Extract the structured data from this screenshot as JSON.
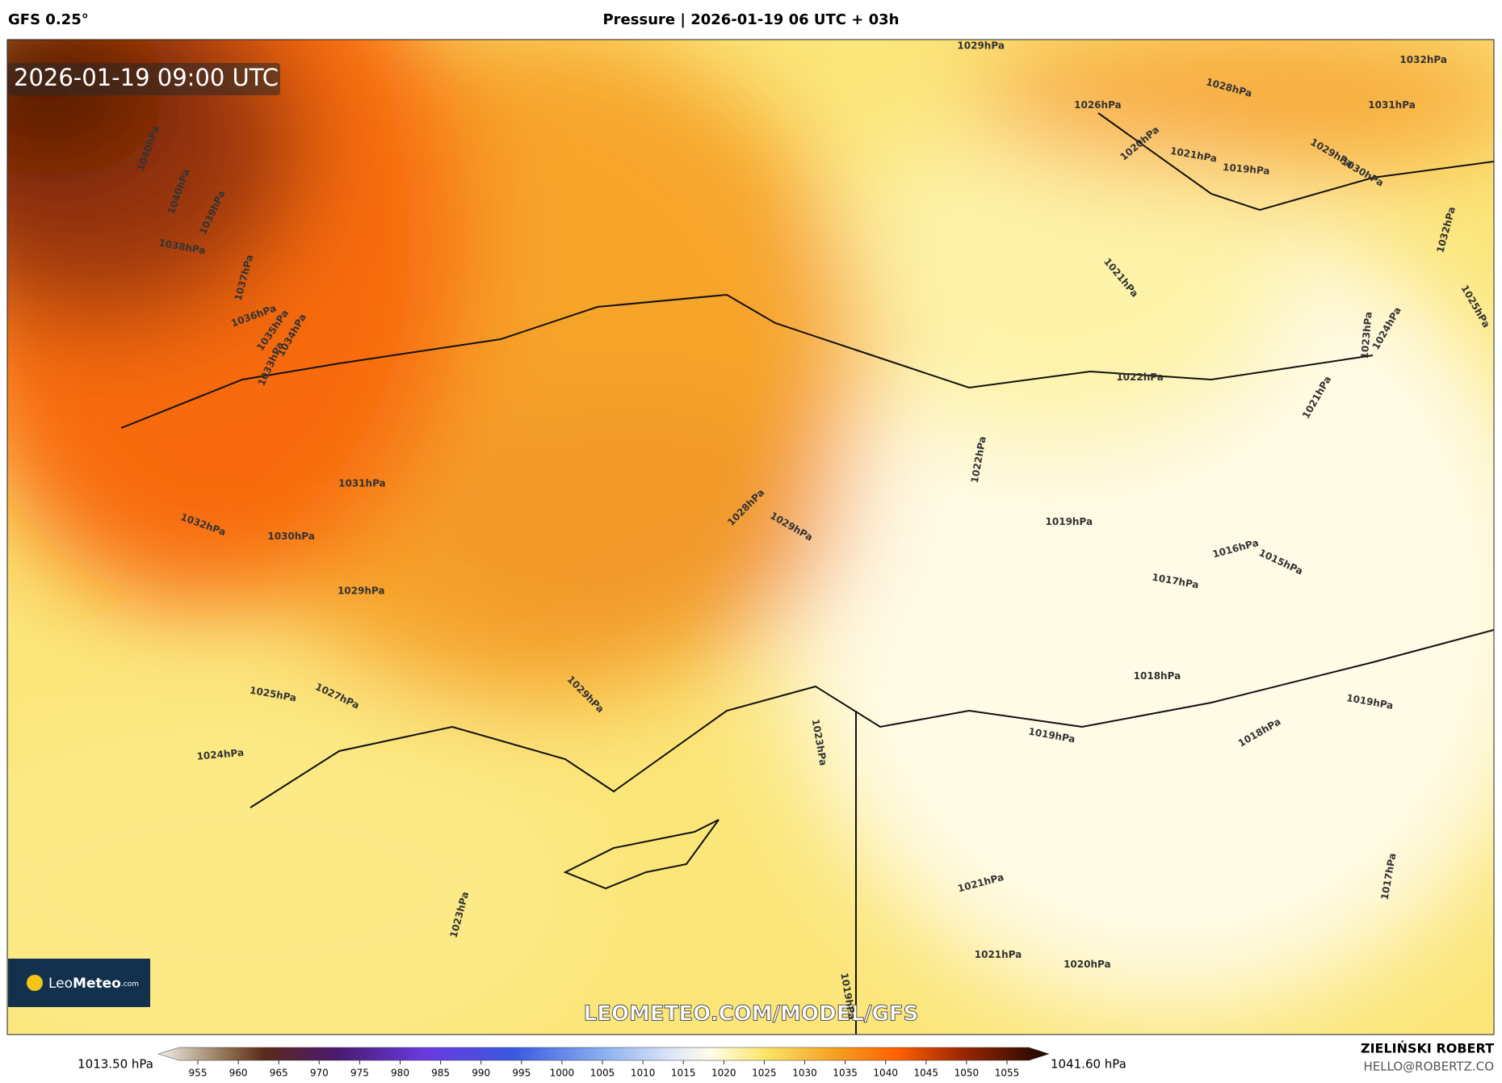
{
  "header": {
    "model": "GFS 0.25°",
    "title": "Pressure | 2026-01-19 06 UTC + 03h"
  },
  "map": {
    "timestamp": "2026-01-19 09:00 UTC",
    "watermark": "LEOMETEO.COM/MODEL/GFS",
    "logo": {
      "name": "Leo",
      "bold": "Meteo",
      "suffix": ".com"
    },
    "contour_labels": [
      "1029hPa",
      "1032hPa",
      "1028hPa",
      "1026hPa",
      "1031hPa",
      "1020hPa",
      "1021hPa",
      "1019hPa",
      "1029hPa",
      "1030hPa",
      "1021hPa",
      "1022hPa",
      "1032hPa",
      "1025hPa",
      "1023hPa",
      "1024hPa",
      "1021hPa",
      "1022hPa",
      "1031hPa",
      "1032hPa",
      "1030hPa",
      "1028hPa",
      "1029hPa",
      "1019hPa",
      "1016hPa",
      "1015hPa",
      "1017hPa",
      "1029hPa",
      "1018hPa",
      "1025hPa",
      "1027hPa",
      "1029hPa",
      "1019hPa",
      "1024hPa",
      "1023hPa",
      "1019hPa",
      "1018hPa",
      "1021hPa",
      "1023hPa",
      "1017hPa",
      "1021hPa",
      "1020hPa",
      "1019hPa",
      "1040hPa",
      "1040hPa",
      "1039hPa",
      "1038hPa",
      "1037hPa",
      "1036hPa",
      "1035hPa",
      "1034hPa",
      "1033hPa"
    ]
  },
  "colorbar": {
    "min_label": "1013.50 hPa",
    "max_label": "1041.60 hPa",
    "ticks": [
      955,
      960,
      965,
      970,
      975,
      980,
      985,
      990,
      995,
      1000,
      1005,
      1010,
      1015,
      1020,
      1025,
      1030,
      1035,
      1040,
      1045,
      1050,
      1055
    ]
  },
  "credits": {
    "author": "ZIELIŃSKI ROBERT",
    "email": "HELLO@ROBERTZ.CO"
  }
}
